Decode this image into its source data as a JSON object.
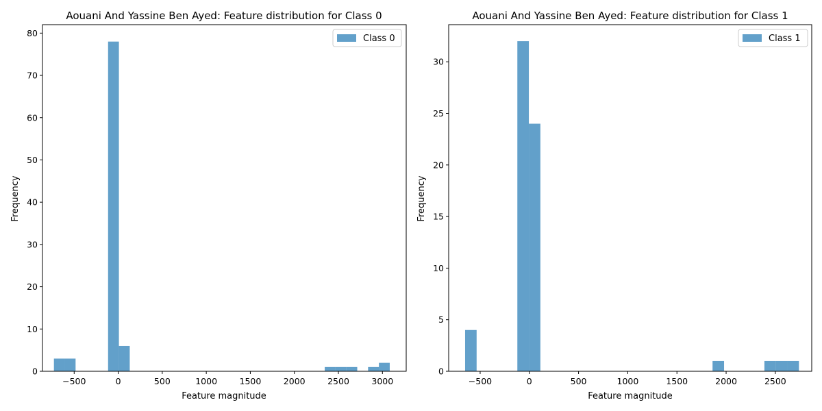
{
  "chart_data": [
    {
      "type": "bar",
      "title": "Aouani And Yassine Ben Ayed: Feature distribution for Class 0",
      "xlabel": "Feature magnitude",
      "ylabel": "Frequency",
      "xlim": [
        -860,
        3270
      ],
      "ylim": [
        0,
        82
      ],
      "xticks": [
        -500,
        0,
        500,
        1000,
        1500,
        2000,
        2500,
        3000
      ],
      "xtick_labels": [
        "−500",
        "0",
        "500",
        "1000",
        "1500",
        "2000",
        "2500",
        "3000"
      ],
      "yticks": [
        0,
        10,
        20,
        30,
        40,
        50,
        60,
        70,
        80
      ],
      "ytick_labels": [
        "0",
        "10",
        "20",
        "30",
        "40",
        "50",
        "60",
        "70",
        "80"
      ],
      "bar_color": "#1f77b4",
      "bar_alpha": 0.7,
      "legend": {
        "label": "Class 0",
        "position": "upper right"
      },
      "bins": [
        {
          "x0": -730,
          "x1": -607,
          "count": 3
        },
        {
          "x0": -607,
          "x1": -484,
          "count": 3
        },
        {
          "x0": -484,
          "x1": -361,
          "count": 0
        },
        {
          "x0": -361,
          "x1": -238,
          "count": 0
        },
        {
          "x0": -238,
          "x1": -115,
          "count": 0
        },
        {
          "x0": -115,
          "x1": 8,
          "count": 78
        },
        {
          "x0": 8,
          "x1": 131,
          "count": 6
        },
        {
          "x0": 2345,
          "x1": 2468,
          "count": 1
        },
        {
          "x0": 2468,
          "x1": 2591,
          "count": 1
        },
        {
          "x0": 2591,
          "x1": 2714,
          "count": 1
        },
        {
          "x0": 2837,
          "x1": 2960,
          "count": 1
        },
        {
          "x0": 2960,
          "x1": 3083,
          "count": 2
        }
      ]
    },
    {
      "type": "bar",
      "title": "Aouani And Yassine Ben Ayed: Feature distribution for Class 1",
      "xlabel": "Feature magnitude",
      "ylabel": "Frequency",
      "xlim": [
        -820,
        2870
      ],
      "ylim": [
        0,
        33.6
      ],
      "xticks": [
        -500,
        0,
        500,
        1000,
        1500,
        2000,
        2500
      ],
      "xtick_labels": [
        "−500",
        "0",
        "500",
        "1000",
        "1500",
        "2000",
        "2500"
      ],
      "yticks": [
        0,
        5,
        10,
        15,
        20,
        25,
        30
      ],
      "ytick_labels": [
        "0",
        "5",
        "10",
        "15",
        "20",
        "25",
        "30"
      ],
      "bar_color": "#1f77b4",
      "bar_alpha": 0.7,
      "legend": {
        "label": "Class 1",
        "position": "upper right"
      },
      "bins": [
        {
          "x0": -653,
          "x1": -536,
          "count": 4
        },
        {
          "x0": -122,
          "x1": -5,
          "count": 32
        },
        {
          "x0": -5,
          "x1": 112,
          "count": 24
        },
        {
          "x0": 1862,
          "x1": 1979,
          "count": 1
        },
        {
          "x0": 2389,
          "x1": 2506,
          "count": 1
        },
        {
          "x0": 2506,
          "x1": 2623,
          "count": 1
        },
        {
          "x0": 2623,
          "x1": 2740,
          "count": 1
        }
      ]
    }
  ]
}
